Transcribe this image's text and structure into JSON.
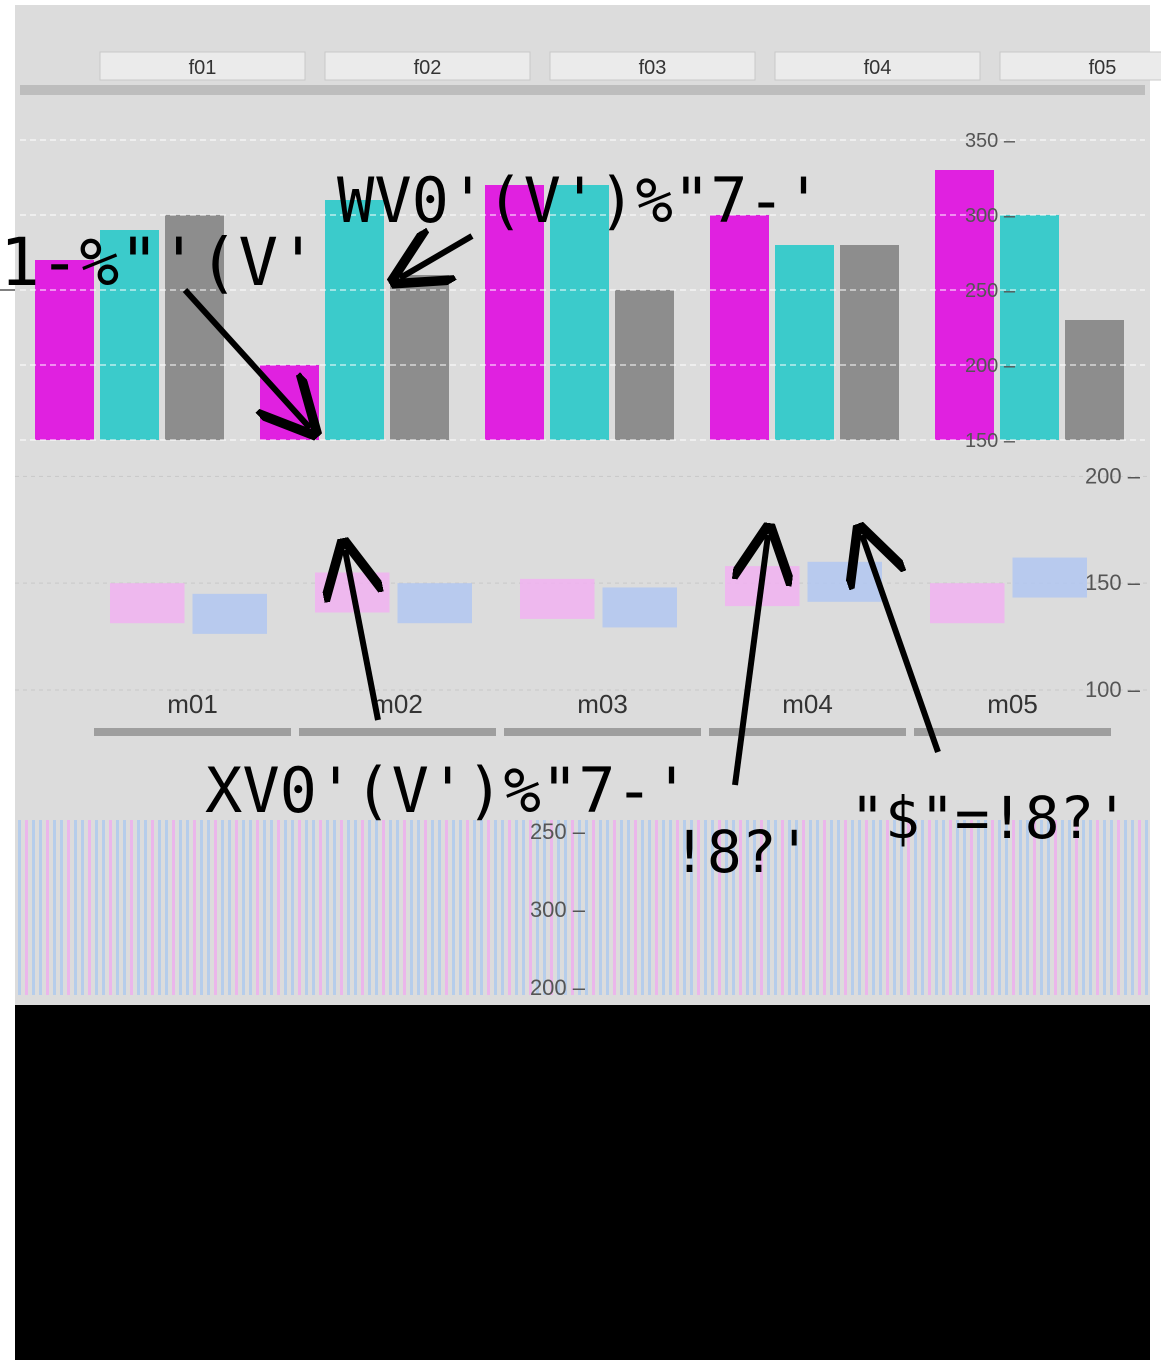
{
  "chart_data": [
    {
      "type": "bar",
      "categories": [
        "f01",
        "f02",
        "f03",
        "f04",
        "f05"
      ],
      "series": [
        {
          "values": [
            270,
            200,
            320,
            300,
            330
          ]
        },
        {
          "values": [
            290,
            310,
            320,
            280,
            300
          ]
        },
        {
          "values": [
            300,
            260,
            250,
            280,
            230
          ]
        }
      ],
      "yticks": [
        150,
        200,
        250,
        300,
        350
      ],
      "ylim": [
        150,
        380
      ],
      "colors": [
        "#e100e1",
        "#1ec8c8",
        "#7f7f7f"
      ]
    },
    {
      "type": "bar",
      "categories": [
        "m01",
        "m02",
        "m03",
        "m04",
        "m05"
      ],
      "series": [
        {
          "values": [
            150,
            155,
            152,
            158,
            150
          ]
        },
        {
          "values": [
            145,
            150,
            148,
            160,
            162
          ]
        }
      ],
      "yticks": [
        100,
        150,
        200
      ],
      "ylim": [
        100,
        210
      ],
      "colors": [
        "#f0b4f0",
        "#b4c8f0"
      ]
    },
    {
      "type": "bar",
      "categories": [],
      "yticks": [
        200,
        250,
        300
      ],
      "series": []
    }
  ],
  "annotations": [
    {
      "text": "1-%\"'(V'"
    },
    {
      "text": "WV0'(V')%\"7-'"
    },
    {
      "text": "XV0'(V')%\"7-'"
    },
    {
      "text": "!8?'"
    },
    {
      "text": "\"$\"=!8?'"
    }
  ]
}
